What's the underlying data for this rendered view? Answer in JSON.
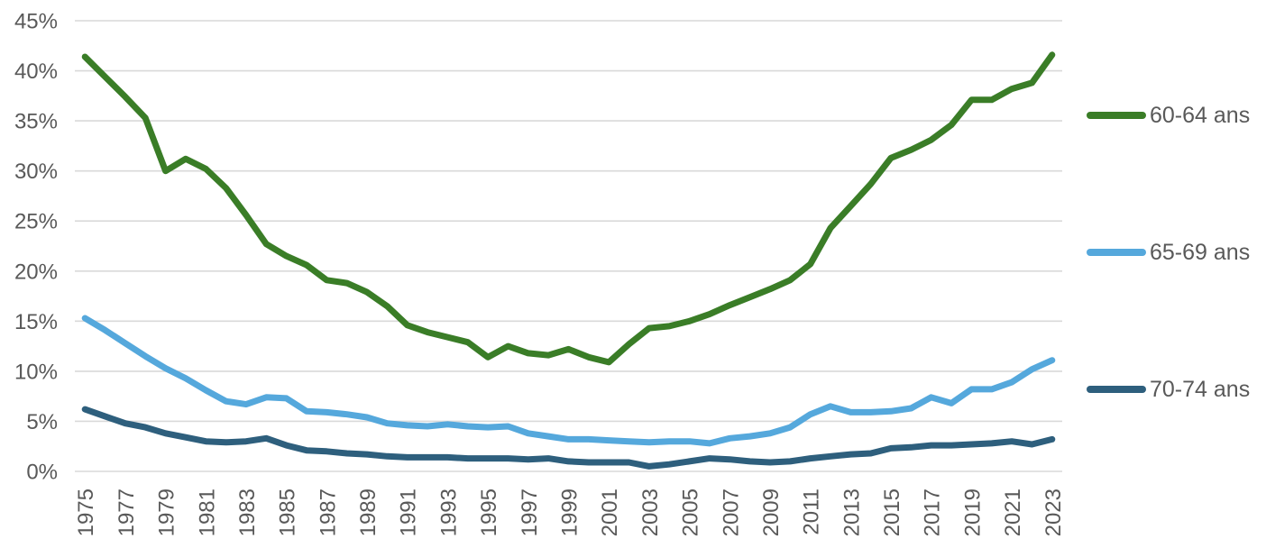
{
  "chart_data": {
    "type": "line",
    "title": "",
    "xlabel": "",
    "ylabel": "",
    "grid": true,
    "legend_position": "right",
    "ylim": [
      0,
      45
    ],
    "y_tick_step": 5,
    "y_tick_labels": [
      "0%",
      "5%",
      "10%",
      "15%",
      "20%",
      "25%",
      "30%",
      "35%",
      "40%",
      "45%"
    ],
    "x_tick_labels": [
      "1975",
      "1977",
      "1979",
      "1981",
      "1983",
      "1985",
      "1987",
      "1989",
      "1991",
      "1993",
      "1995",
      "1997",
      "1999",
      "2001",
      "2003",
      "2005",
      "2007",
      "2009",
      "2011",
      "2013",
      "2015",
      "2017",
      "2019",
      "2021",
      "2023"
    ],
    "years": [
      1975,
      1976,
      1977,
      1978,
      1979,
      1980,
      1981,
      1982,
      1983,
      1984,
      1985,
      1986,
      1987,
      1988,
      1989,
      1990,
      1991,
      1992,
      1993,
      1994,
      1995,
      1996,
      1997,
      1998,
      1999,
      2000,
      2001,
      2002,
      2003,
      2004,
      2005,
      2006,
      2007,
      2008,
      2009,
      2010,
      2011,
      2012,
      2013,
      2014,
      2015,
      2016,
      2017,
      2018,
      2019,
      2020,
      2021,
      2022,
      2023
    ],
    "series": [
      {
        "name": "60-64 ans",
        "color": "#3A7D27",
        "values": [
          41.4,
          39.4,
          37.4,
          35.3,
          30.0,
          31.2,
          30.2,
          28.3,
          25.6,
          22.7,
          21.5,
          20.6,
          19.1,
          18.8,
          17.9,
          16.5,
          14.6,
          13.9,
          13.4,
          12.9,
          11.4,
          12.5,
          11.8,
          11.6,
          12.2,
          11.4,
          10.9,
          12.7,
          14.3,
          14.5,
          15.0,
          15.7,
          16.6,
          17.4,
          18.2,
          19.1,
          20.7,
          24.3,
          26.5,
          28.7,
          31.3,
          32.1,
          33.1,
          34.6,
          37.1,
          37.1,
          38.2,
          38.8,
          41.6
        ]
      },
      {
        "name": "65-69 ans",
        "color": "#55A8DC",
        "values": [
          15.3,
          14.1,
          12.8,
          11.5,
          10.3,
          9.3,
          8.1,
          7.0,
          6.7,
          7.4,
          7.3,
          6.0,
          5.9,
          5.7,
          5.4,
          4.8,
          4.6,
          4.5,
          4.7,
          4.5,
          4.4,
          4.5,
          3.8,
          3.5,
          3.2,
          3.2,
          3.1,
          3.0,
          2.9,
          3.0,
          3.0,
          2.8,
          3.3,
          3.5,
          3.8,
          4.4,
          5.7,
          6.5,
          5.9,
          5.9,
          6.0,
          6.3,
          7.4,
          6.8,
          8.2,
          8.2,
          8.9,
          10.2,
          11.1
        ]
      },
      {
        "name": "70-74 ans",
        "color": "#2E5F7D",
        "values": [
          6.2,
          5.5,
          4.8,
          4.4,
          3.8,
          3.4,
          3.0,
          2.9,
          3.0,
          3.3,
          2.6,
          2.1,
          2.0,
          1.8,
          1.7,
          1.5,
          1.4,
          1.4,
          1.4,
          1.3,
          1.3,
          1.3,
          1.2,
          1.3,
          1.0,
          0.9,
          0.9,
          0.9,
          0.5,
          0.7,
          1.0,
          1.3,
          1.2,
          1.0,
          0.9,
          1.0,
          1.3,
          1.5,
          1.7,
          1.8,
          2.3,
          2.4,
          2.6,
          2.6,
          2.7,
          2.8,
          3.0,
          2.7,
          3.2
        ]
      }
    ],
    "styles": {
      "gridline_color": "#D9D9D9",
      "tick_label_color": "#595959",
      "background_color": "#FFFFFF"
    }
  }
}
